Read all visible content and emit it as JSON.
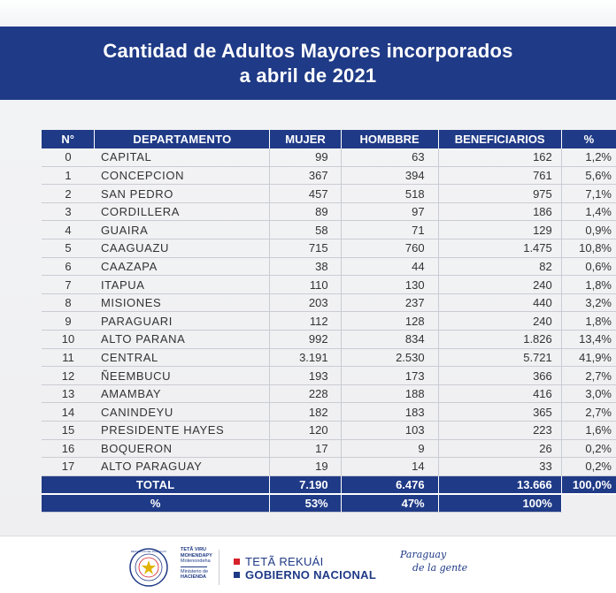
{
  "title_line1": "Cantidad de Adultos Mayores incorporados",
  "title_line2": "a abril de 2021",
  "headers": {
    "num": "N°",
    "departamento": "DEPARTAMENTO",
    "mujer": "MUJER",
    "hombre": "HOMBBRE",
    "beneficiarios": "BENEFICIARIOS",
    "pct": "%"
  },
  "rows": [
    {
      "num": "0",
      "dep": "CAPITAL",
      "mujer": "99",
      "hombre": "63",
      "benef": "162",
      "pct": "1,2%"
    },
    {
      "num": "1",
      "dep": "CONCEPCION",
      "mujer": "367",
      "hombre": "394",
      "benef": "761",
      "pct": "5,6%"
    },
    {
      "num": "2",
      "dep": "SAN PEDRO",
      "mujer": "457",
      "hombre": "518",
      "benef": "975",
      "pct": "7,1%"
    },
    {
      "num": "3",
      "dep": "CORDILLERA",
      "mujer": "89",
      "hombre": "97",
      "benef": "186",
      "pct": "1,4%"
    },
    {
      "num": "4",
      "dep": "GUAIRA",
      "mujer": "58",
      "hombre": "71",
      "benef": "129",
      "pct": "0,9%"
    },
    {
      "num": "5",
      "dep": "CAAGUAZU",
      "mujer": "715",
      "hombre": "760",
      "benef": "1.475",
      "pct": "10,8%"
    },
    {
      "num": "6",
      "dep": "CAAZAPA",
      "mujer": "38",
      "hombre": "44",
      "benef": "82",
      "pct": "0,6%"
    },
    {
      "num": "7",
      "dep": "ITAPUA",
      "mujer": "110",
      "hombre": "130",
      "benef": "240",
      "pct": "1,8%"
    },
    {
      "num": "8",
      "dep": "MISIONES",
      "mujer": "203",
      "hombre": "237",
      "benef": "440",
      "pct": "3,2%"
    },
    {
      "num": "9",
      "dep": "PARAGUARI",
      "mujer": "112",
      "hombre": "128",
      "benef": "240",
      "pct": "1,8%"
    },
    {
      "num": "10",
      "dep": "ALTO PARANA",
      "mujer": "992",
      "hombre": "834",
      "benef": "1.826",
      "pct": "13,4%"
    },
    {
      "num": "11",
      "dep": "CENTRAL",
      "mujer": "3.191",
      "hombre": "2.530",
      "benef": "5.721",
      "pct": "41,9%"
    },
    {
      "num": "12",
      "dep": "ÑEEMBUCU",
      "mujer": "193",
      "hombre": "173",
      "benef": "366",
      "pct": "2,7%"
    },
    {
      "num": "13",
      "dep": "AMAMBAY",
      "mujer": "228",
      "hombre": "188",
      "benef": "416",
      "pct": "3,0%"
    },
    {
      "num": "14",
      "dep": "CANINDEYU",
      "mujer": "182",
      "hombre": "183",
      "benef": "365",
      "pct": "2,7%"
    },
    {
      "num": "15",
      "dep": "PRESIDENTE HAYES",
      "mujer": "120",
      "hombre": "103",
      "benef": "223",
      "pct": "1,6%"
    },
    {
      "num": "16",
      "dep": "BOQUERON",
      "mujer": "17",
      "hombre": "9",
      "benef": "26",
      "pct": "0,2%"
    },
    {
      "num": "17",
      "dep": "ALTO PARAGUAY",
      "mujer": "19",
      "hombre": "14",
      "benef": "33",
      "pct": "0,2%"
    }
  ],
  "total": {
    "label": "TOTAL",
    "mujer": "7.190",
    "hombre": "6.476",
    "benef": "13.666",
    "pct": "100,0%"
  },
  "percent_row": {
    "label": "%",
    "mujer": "53%",
    "hombre": "47%",
    "benef": "100%"
  },
  "footer": {
    "ministry_line1": "TETÃ VIRU",
    "ministry_line2": "MOHENDAPY",
    "ministry_line3": "Motenondeha",
    "ministry_line4": "Ministerio de",
    "ministry_line5": "HACIENDA",
    "gov_line1": "TETÃ REKUÁI",
    "gov_line2": "GOBIERNO NACIONAL",
    "slogan_line1": "Paraguay",
    "slogan_line2": "de la gente",
    "seal_text": "REPUBLICA DEL PARAGUAY"
  },
  "colors": {
    "brand_blue": "#1f3a86",
    "gov_red": "#d6202a"
  }
}
